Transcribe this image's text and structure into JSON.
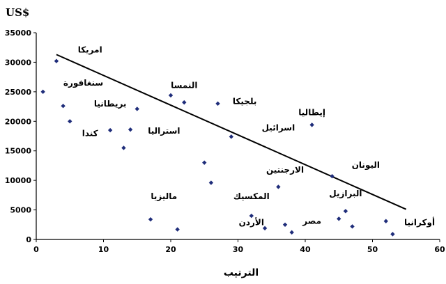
{
  "chart_data": {
    "type": "scatter",
    "title": "",
    "unit_label": "US$",
    "xlabel": "الترتيب",
    "ylabel": "",
    "xlim": [
      0,
      60
    ],
    "ylim": [
      0,
      35000
    ],
    "x_ticks": [
      "0",
      "10",
      "20",
      "30",
      "40",
      "50",
      "60"
    ],
    "y_ticks": [
      "0",
      "5000",
      "10000",
      "15000",
      "20000",
      "25000",
      "30000",
      "35000"
    ],
    "grid": false,
    "legend": "none",
    "marker_color": "#1f2d7a",
    "trendline": {
      "from": [
        3,
        31300
      ],
      "to": [
        55,
        5100
      ]
    },
    "points": [
      {
        "x": 1,
        "y": 25000
      },
      {
        "x": 3,
        "y": 30200
      },
      {
        "x": 4,
        "y": 22600
      },
      {
        "x": 5,
        "y": 20000
      },
      {
        "x": 11,
        "y": 18500
      },
      {
        "x": 13,
        "y": 15500
      },
      {
        "x": 14,
        "y": 18600
      },
      {
        "x": 15,
        "y": 22100
      },
      {
        "x": 17,
        "y": 3400
      },
      {
        "x": 20,
        "y": 24400
      },
      {
        "x": 21,
        "y": 1700
      },
      {
        "x": 22,
        "y": 23200
      },
      {
        "x": 25,
        "y": 13000
      },
      {
        "x": 26,
        "y": 9600
      },
      {
        "x": 27,
        "y": 23000
      },
      {
        "x": 29,
        "y": 17400
      },
      {
        "x": 32,
        "y": 4000
      },
      {
        "x": 34,
        "y": 1900
      },
      {
        "x": 36,
        "y": 8900
      },
      {
        "x": 37,
        "y": 2500
      },
      {
        "x": 38,
        "y": 1200
      },
      {
        "x": 41,
        "y": 19400
      },
      {
        "x": 44,
        "y": 10700
      },
      {
        "x": 45,
        "y": 3500
      },
      {
        "x": 46,
        "y": 4800
      },
      {
        "x": 47,
        "y": 2200
      },
      {
        "x": 52,
        "y": 3100
      },
      {
        "x": 53,
        "y": 900
      }
    ],
    "annotations": [
      {
        "text": "امريكا",
        "x": 8,
        "y": 32100
      },
      {
        "text": "سنغافورة",
        "x": 7,
        "y": 26500
      },
      {
        "text": "بريطانيا",
        "x": 11,
        "y": 23000
      },
      {
        "text": "كندا",
        "x": 8,
        "y": 18000
      },
      {
        "text": "النمسا",
        "x": 22,
        "y": 26100
      },
      {
        "text": "بلجيكا",
        "x": 31,
        "y": 23400
      },
      {
        "text": "استراليا",
        "x": 19,
        "y": 18400
      },
      {
        "text": "اسرائيل",
        "x": 36,
        "y": 18900
      },
      {
        "text": "إيطاليا",
        "x": 41,
        "y": 21500
      },
      {
        "text": "الارجنتين",
        "x": 37,
        "y": 11800
      },
      {
        "text": "اليونان",
        "x": 49,
        "y": 12600
      },
      {
        "text": "البرازيل",
        "x": 46,
        "y": 7800
      },
      {
        "text": "المكسيك",
        "x": 32,
        "y": 7300
      },
      {
        "text": "ماليزيا",
        "x": 19,
        "y": 7300
      },
      {
        "text": "مصر",
        "x": 41,
        "y": 3100
      },
      {
        "text": "الأردن",
        "x": 32,
        "y": 2900
      },
      {
        "text": "أوكرانيا",
        "x": 57,
        "y": 2900
      }
    ]
  }
}
